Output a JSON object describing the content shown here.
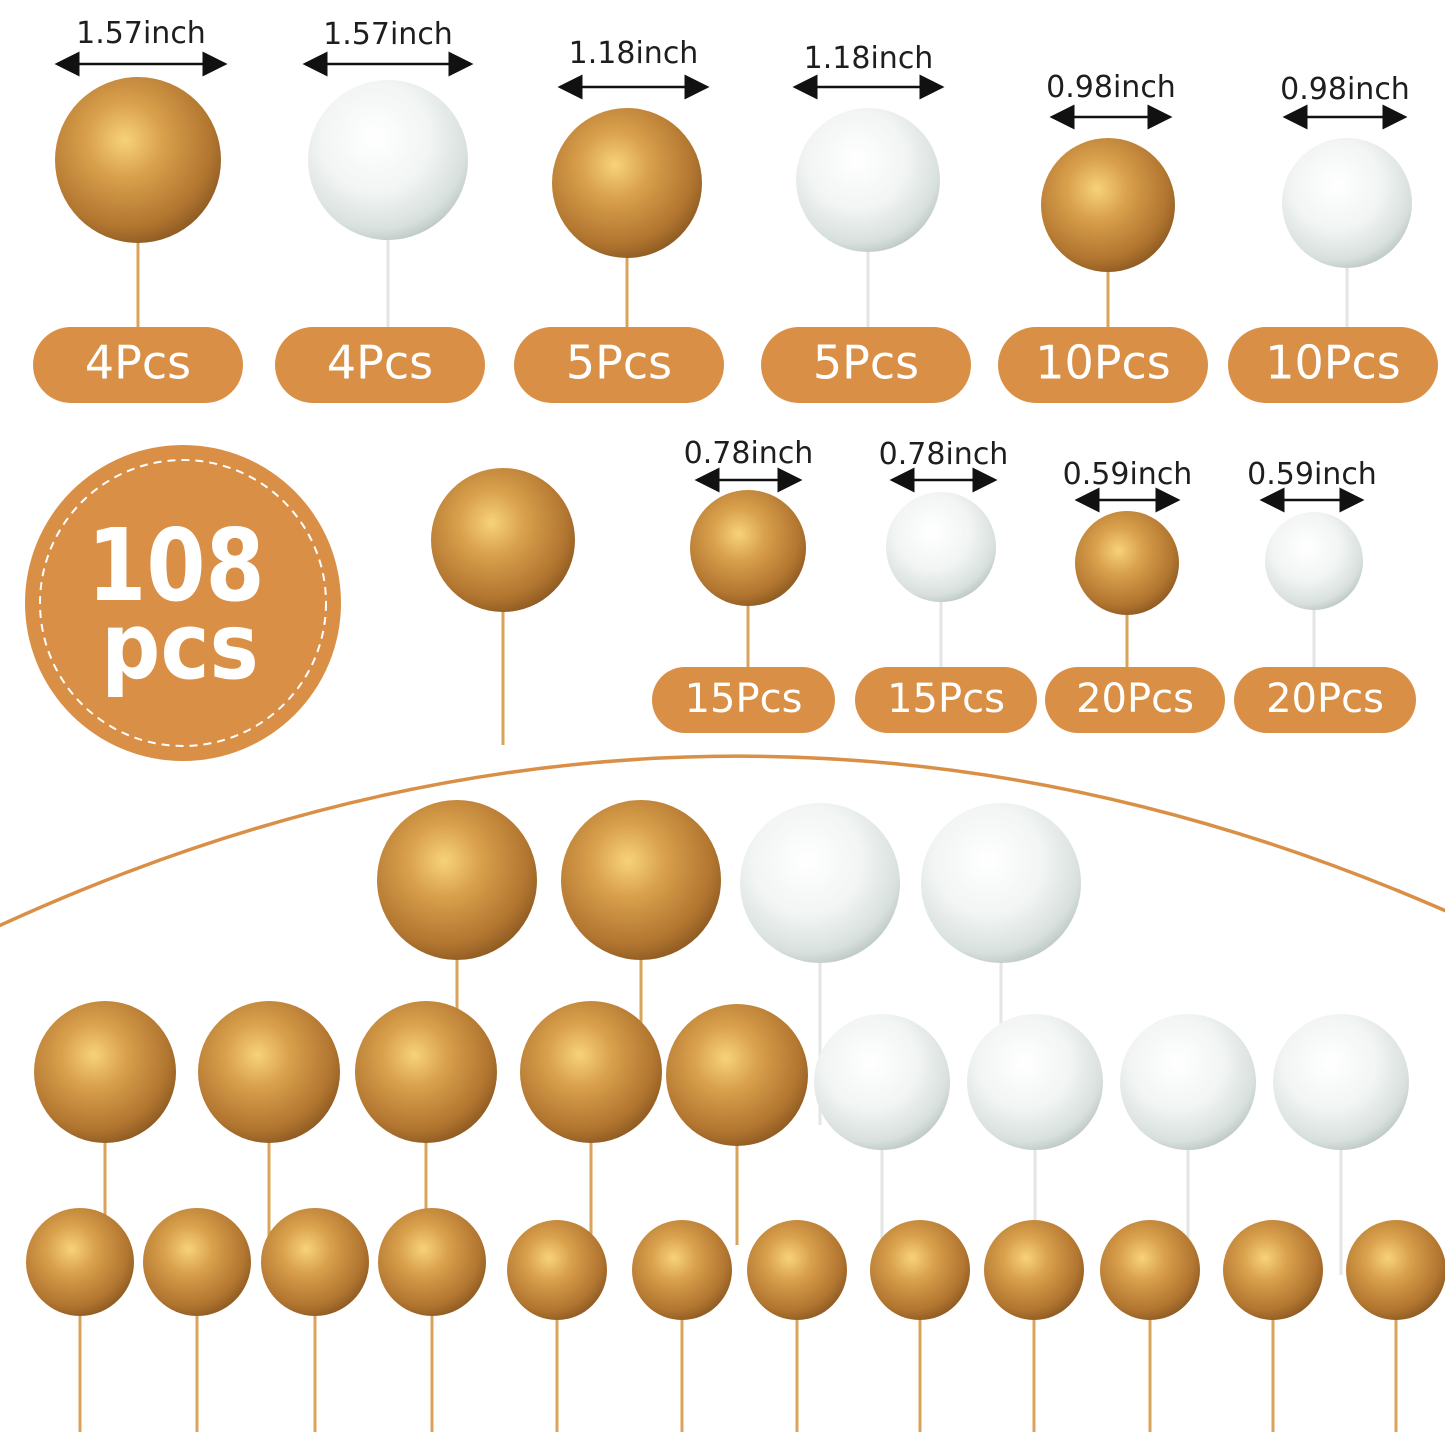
{
  "colors": {
    "accent": "#d98f45",
    "gold": "#c98a3b",
    "white_ball": "#f2f5f4",
    "text": "#1e1e1e"
  },
  "badge": {
    "count": "108",
    "unit": "pcs"
  },
  "sizes_row1": [
    {
      "size": "1.57inch",
      "count": "4Pcs",
      "color": "gold"
    },
    {
      "size": "1.57inch",
      "count": "4Pcs",
      "color": "white"
    },
    {
      "size": "1.18inch",
      "count": "5Pcs",
      "color": "gold"
    },
    {
      "size": "1.18inch",
      "count": "5Pcs",
      "color": "white"
    },
    {
      "size": "0.98inch",
      "count": "10Pcs",
      "color": "gold"
    },
    {
      "size": "0.98inch",
      "count": "10Pcs",
      "color": "white"
    }
  ],
  "sizes_row2": [
    {
      "size": "0.78inch",
      "count": "15Pcs",
      "color": "gold"
    },
    {
      "size": "0.78inch",
      "count": "15Pcs",
      "color": "white"
    },
    {
      "size": "0.59inch",
      "count": "20Pcs",
      "color": "gold"
    },
    {
      "size": "0.59inch",
      "count": "20Pcs",
      "color": "white"
    }
  ]
}
